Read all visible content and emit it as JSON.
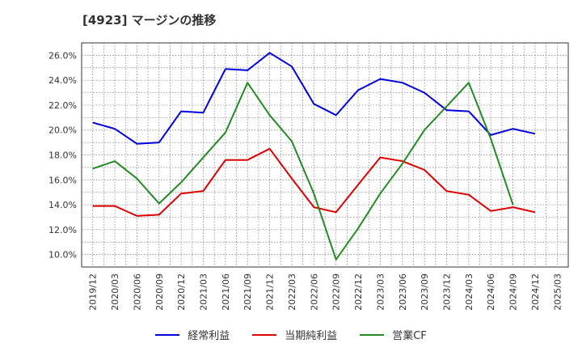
{
  "title": "[4923]  マージンの推移",
  "legend": [
    {
      "label": "経常利益",
      "color": "#0000dd"
    },
    {
      "label": "当期純利益",
      "color": "#dd0000"
    },
    {
      "label": "営業CF",
      "color": "#228b22"
    }
  ],
  "chart_data": {
    "type": "line",
    "ylim": [
      9.0,
      27.0
    ],
    "y_ticks": [
      "10.0%",
      "12.0%",
      "14.0%",
      "16.0%",
      "18.0%",
      "20.0%",
      "22.0%",
      "24.0%",
      "26.0%"
    ],
    "x": [
      "2019/12",
      "2020/03",
      "2020/06",
      "2020/09",
      "2020/12",
      "2021/03",
      "2021/06",
      "2021/09",
      "2021/12",
      "2022/03",
      "2022/06",
      "2022/09",
      "2022/12",
      "2023/03",
      "2023/06",
      "2023/09",
      "2023/12",
      "2024/03",
      "2024/06",
      "2024/09",
      "2024/12",
      "2025/03"
    ],
    "grid": true,
    "legend_position": "bottom",
    "series": [
      {
        "name": "経常利益",
        "color": "#0000dd",
        "values": [
          20.6,
          20.1,
          18.9,
          19.0,
          21.5,
          21.4,
          24.9,
          24.8,
          26.2,
          25.1,
          22.1,
          21.2,
          23.2,
          24.1,
          23.8,
          23.0,
          21.6,
          21.5,
          19.6,
          20.1,
          19.7,
          null
        ]
      },
      {
        "name": "当期純利益",
        "color": "#dd0000",
        "values": [
          13.9,
          13.9,
          13.1,
          13.2,
          14.9,
          15.1,
          17.6,
          17.6,
          18.5,
          16.1,
          13.8,
          13.4,
          15.6,
          17.8,
          17.5,
          16.8,
          15.1,
          14.8,
          13.5,
          13.8,
          13.4,
          null
        ]
      },
      {
        "name": "営業CF",
        "color": "#228b22",
        "values": [
          16.9,
          17.5,
          16.1,
          14.1,
          15.8,
          17.8,
          19.8,
          23.8,
          21.2,
          19.1,
          14.9,
          9.6,
          12.1,
          14.9,
          17.3,
          20.0,
          21.9,
          23.8,
          19.3,
          14.0,
          null,
          null
        ]
      }
    ]
  }
}
